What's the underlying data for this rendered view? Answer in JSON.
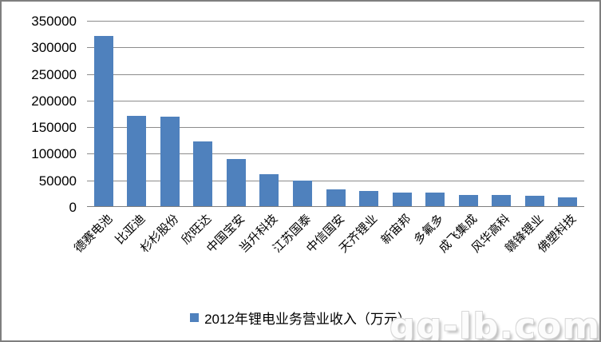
{
  "chart_data": {
    "type": "bar",
    "title": "",
    "legend": "2012年锂电业务营业收入（万元）",
    "legend_position": "bottom",
    "categories": [
      "德赛电池",
      "比亚迪",
      "杉杉股份",
      "欣旺达",
      "中国宝安",
      "当升科技",
      "江苏国泰",
      "中信国安",
      "天齐锂业",
      "新宙邦",
      "多氟多",
      "成飞集成",
      "风华高科",
      "赣锋锂业",
      "佛塑科技"
    ],
    "values": [
      320000,
      170000,
      168000,
      121000,
      88000,
      60000,
      48000,
      32000,
      29000,
      26000,
      25000,
      21500,
      21000,
      20000,
      16000
    ],
    "xlabel": "",
    "ylabel": "",
    "ylim": [
      0,
      350000
    ],
    "yticks": [
      0,
      50000,
      100000,
      150000,
      200000,
      250000,
      300000,
      350000
    ],
    "grid": true,
    "bar_color": "#4f81bd",
    "gridline_color": "#8c8c8c"
  },
  "watermark": {
    "text": "gg-lb.com"
  }
}
